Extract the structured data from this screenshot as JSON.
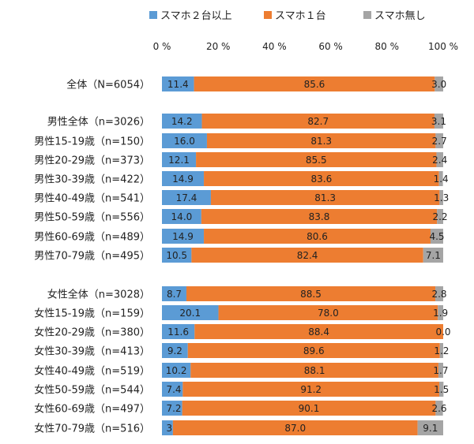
{
  "chart_data": {
    "type": "bar",
    "orientation": "horizontal",
    "stacked": true,
    "xlim": [
      0,
      100
    ],
    "xticks": [
      "0 %",
      "20 %",
      "40 %",
      "60 %",
      "80 %",
      "100 %"
    ],
    "legend_position": "top",
    "grid": false,
    "categories": [
      "全体（N=6054）",
      "男性全体（n=3026）",
      "男性15-19歳（n=150）",
      "男性20-29歳（n=373）",
      "男性30-39歳（n=422）",
      "男性40-49歳（n=541）",
      "男性50-59歳（n=556）",
      "男性60-69歳（n=489）",
      "男性70-79歳（n=495）",
      "女性全体（n=3028）",
      "女性15-19歳（n=159）",
      "女性20-29歳（n=380）",
      "女性30-39歳（n=413）",
      "女性40-49歳（n=519）",
      "女性50-59歳（n=544）",
      "女性60-69歳（n=497）",
      "女性70-79歳（n=516）"
    ],
    "series": [
      {
        "name": "スマホ２台以上",
        "color": "#5B9BD5",
        "values": [
          11.4,
          14.2,
          16.0,
          12.1,
          14.9,
          17.4,
          14.0,
          14.9,
          10.5,
          8.7,
          20.1,
          11.6,
          9.2,
          10.2,
          7.4,
          7.2,
          3.9
        ]
      },
      {
        "name": "スマホ１台",
        "color": "#ED7D31",
        "values": [
          85.6,
          82.7,
          81.3,
          85.5,
          83.6,
          81.3,
          83.8,
          80.6,
          82.4,
          88.5,
          78.0,
          88.4,
          89.6,
          88.1,
          91.2,
          90.1,
          87.0
        ]
      },
      {
        "name": "スマホ無し",
        "color": "#A5A5A5",
        "values": [
          3.0,
          3.1,
          2.7,
          2.4,
          1.4,
          1.3,
          2.2,
          4.5,
          7.1,
          2.8,
          1.9,
          0.0,
          1.2,
          1.7,
          1.5,
          2.6,
          9.1
        ]
      }
    ]
  }
}
